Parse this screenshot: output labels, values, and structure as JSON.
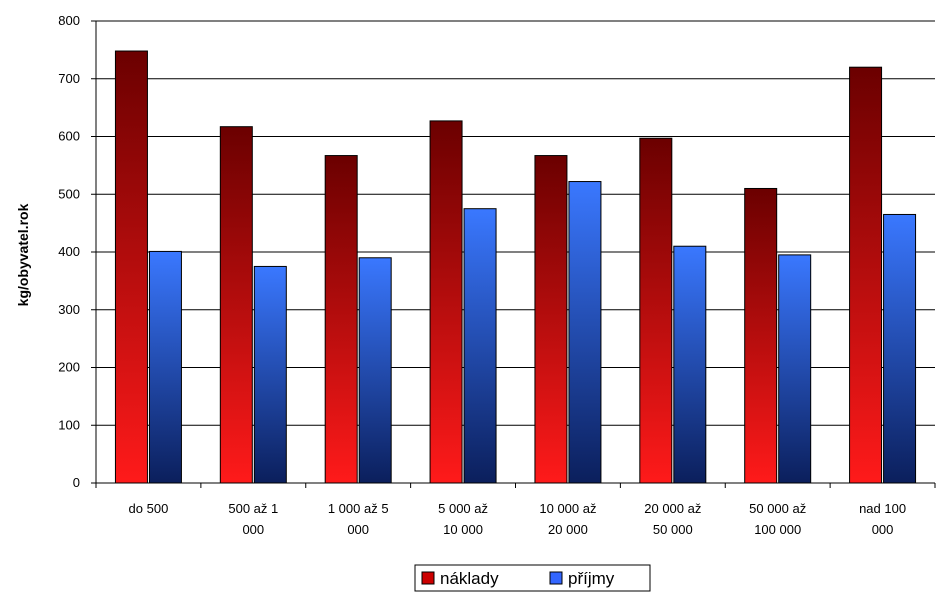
{
  "chart_data": {
    "type": "bar",
    "title": "",
    "xlabel": "",
    "ylabel": "kg/obyvatel.rok",
    "ylim": [
      0,
      800
    ],
    "yticks": [
      0,
      100,
      200,
      300,
      400,
      500,
      600,
      700,
      800
    ],
    "grid": true,
    "legend_position": "bottom",
    "categories": [
      [
        "do 500"
      ],
      [
        "500 až 1",
        "000"
      ],
      [
        "1 000 až 5",
        "000"
      ],
      [
        "5 000 až",
        "10 000"
      ],
      [
        "10 000 až",
        "20 000"
      ],
      [
        "20 000 až",
        "50 000"
      ],
      [
        "50 000 až",
        "100 000"
      ],
      [
        "nad 100",
        "000"
      ]
    ],
    "series": [
      {
        "name": "náklady",
        "values": [
          748,
          617,
          567,
          627,
          567,
          597,
          510,
          720
        ],
        "color_top": "#6b0000",
        "color_bottom": "#ff1a1a"
      },
      {
        "name": "příjmy",
        "values": [
          401,
          375,
          390,
          475,
          522,
          410,
          395,
          465
        ],
        "color_top": "#3a78ff",
        "color_bottom": "#0b1f5c"
      }
    ]
  }
}
